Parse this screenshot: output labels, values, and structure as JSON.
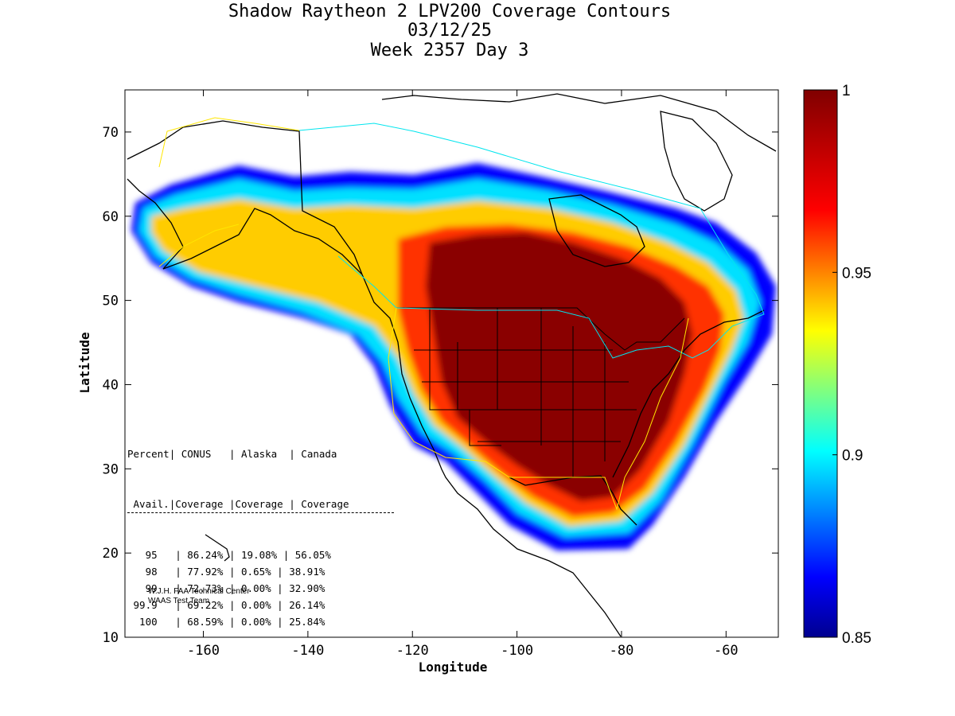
{
  "title": {
    "line1": "Shadow Raytheon 2 LPV200 Coverage Contours",
    "line2": "03/12/25",
    "line3": "Week 2357 Day 3"
  },
  "axes": {
    "xlabel": "Longitude",
    "ylabel": "Latitude",
    "xticks": [
      "-160",
      "-140",
      "-120",
      "-100",
      "-80",
      "-60"
    ],
    "yticks": [
      "10",
      "20",
      "30",
      "40",
      "50",
      "60",
      "70"
    ],
    "xrange": [
      -175,
      -50
    ],
    "yrange": [
      10,
      75
    ]
  },
  "colorbar": {
    "ticks": [
      "0.85",
      "0.9",
      "0.95",
      "1"
    ],
    "range": [
      0.85,
      1
    ],
    "colormap": "jet"
  },
  "stats_table": {
    "header1": [
      "Percent",
      "CONUS",
      "Alaska",
      "Canada"
    ],
    "header2": [
      "Avail.",
      "Coverage",
      "Coverage",
      "Coverage"
    ],
    "rows": [
      [
        "95",
        "86.24%",
        "19.08%",
        "56.05%"
      ],
      [
        "98",
        "77.92%",
        "0.65%",
        "38.91%"
      ],
      [
        "99",
        "72.73%",
        "0.00%",
        "32.90%"
      ],
      [
        "99.9",
        "69.22%",
        "0.00%",
        "26.14%"
      ],
      [
        "100",
        "68.59%",
        "0.00%",
        "25.84%"
      ]
    ]
  },
  "credit": {
    "line1": "W.J.H. FAA Technical Center",
    "line2": "WAAS Test Team"
  },
  "colors": {
    "boundary_cyan": "#00e5ee",
    "boundary_yellow": "#ffe600",
    "coast": "#000000"
  }
}
